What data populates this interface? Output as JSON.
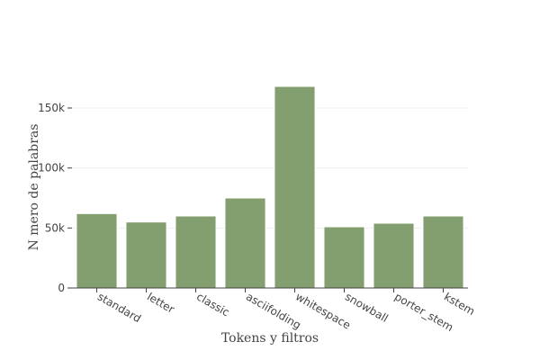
{
  "chart_data": {
    "type": "bar",
    "categories": [
      "standard",
      "letter",
      "classic",
      "asciifolding",
      "whitespace",
      "snowball",
      "porter_stem",
      "kstem"
    ],
    "values": [
      62000,
      55000,
      60000,
      75000,
      168000,
      51000,
      54000,
      60000
    ],
    "xlabel": "Tokens y filtros",
    "ylabel": "N  mero de palabras",
    "ylim": [
      0,
      180000
    ],
    "yticks": [
      0,
      50000,
      100000,
      150000
    ],
    "ytick_labels": [
      "0",
      "50k",
      "100k",
      "150k"
    ],
    "grid": true,
    "bar_color": "#839f6f",
    "bar_edge_color": "#ffffff",
    "grid_color": "#eeeeee",
    "axis_color": "#444444"
  }
}
